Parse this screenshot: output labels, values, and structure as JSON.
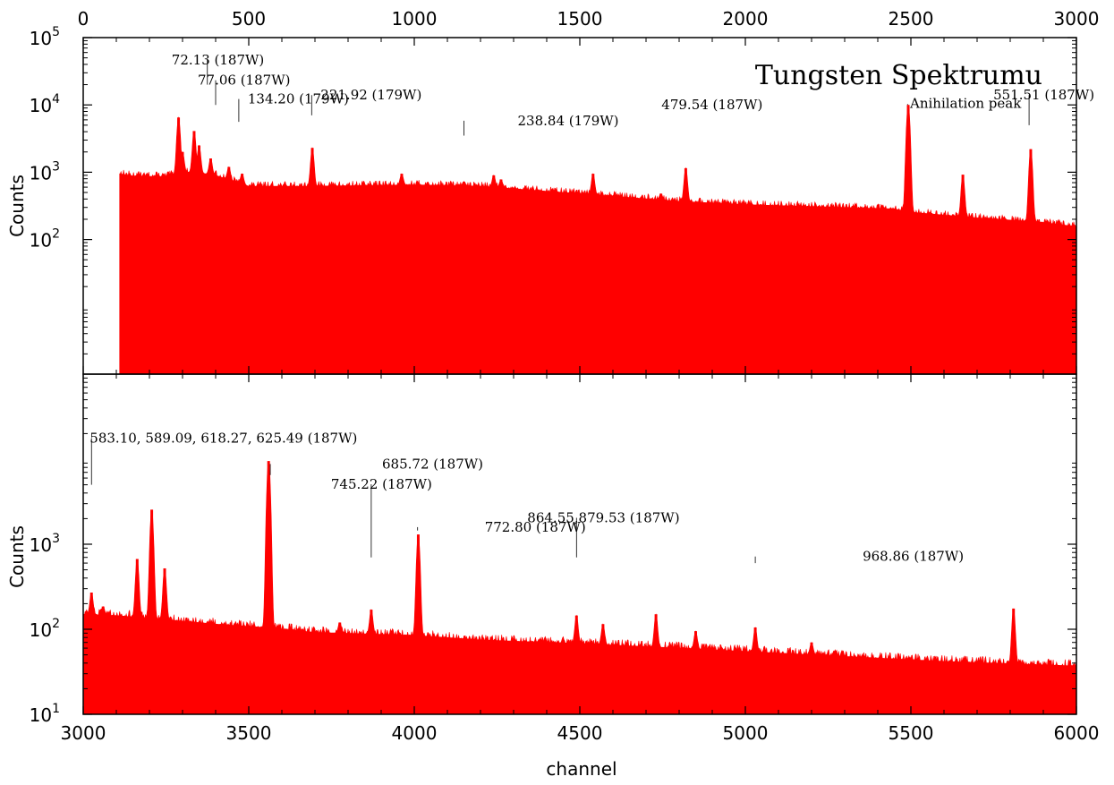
{
  "chart_data": {
    "type": "area",
    "title": "Tungsten Spektrumu",
    "xlabel": "channel",
    "panels": [
      {
        "id": "top",
        "ylabel": "Counts",
        "x_axis_position": "top",
        "xlim": [
          0,
          3000
        ],
        "ylim": [
          1,
          100000
        ],
        "yscale": "log",
        "x_ticks": [
          0,
          500,
          1000,
          1500,
          2000,
          2500,
          3000
        ],
        "y_ticks": [
          {
            "value": 100,
            "base": "10",
            "exp": "2"
          },
          {
            "value": 1000,
            "base": "10",
            "exp": "3"
          },
          {
            "value": 10000,
            "base": "10",
            "exp": "4"
          },
          {
            "value": 100000,
            "base": "10",
            "exp": "5"
          }
        ],
        "fill_color": "#ff0000",
        "spectrum": {
          "start_channel": 110,
          "baseline": [
            [
              110,
              950
            ],
            [
              150,
              880
            ],
            [
              250,
              860
            ],
            [
              300,
              1000
            ],
            [
              340,
              1000
            ],
            [
              400,
              900
            ],
            [
              500,
              620
            ],
            [
              700,
              620
            ],
            [
              1000,
              650
            ],
            [
              1200,
              620
            ],
            [
              1500,
              480
            ],
            [
              1800,
              370
            ],
            [
              2000,
              330
            ],
            [
              2300,
              300
            ],
            [
              2450,
              285
            ],
            [
              2500,
              255
            ],
            [
              2700,
              210
            ],
            [
              2900,
              180
            ],
            [
              3000,
              155
            ]
          ],
          "peaks": [
            {
              "x": 288,
              "y": 6500
            },
            {
              "x": 300,
              "y": 2000
            },
            {
              "x": 335,
              "y": 4100
            },
            {
              "x": 350,
              "y": 2500
            },
            {
              "x": 385,
              "y": 1600
            },
            {
              "x": 440,
              "y": 1200
            },
            {
              "x": 480,
              "y": 950
            },
            {
              "x": 692,
              "y": 2300
            },
            {
              "x": 962,
              "y": 950
            },
            {
              "x": 1150,
              "y": 720
            },
            {
              "x": 1240,
              "y": 900
            },
            {
              "x": 1262,
              "y": 780
            },
            {
              "x": 1540,
              "y": 950
            },
            {
              "x": 1820,
              "y": 1150
            },
            {
              "x": 1745,
              "y": 480
            },
            {
              "x": 2492,
              "y": 10000
            },
            {
              "x": 2657,
              "y": 920
            },
            {
              "x": 2862,
              "y": 2200
            }
          ]
        },
        "annotations": [
          {
            "text": "72.13 (187W)",
            "x": 375,
            "y": 20000
          },
          {
            "text": "77.06 (187W)",
            "x": 400,
            "y": 10000
          },
          {
            "text": "134.20 (179W)",
            "x": 470,
            "y": 5600
          },
          {
            "text": "221.92 (179W)",
            "x": 690,
            "y": 7000
          },
          {
            "text": "238.84 (179W)",
            "x": 1150,
            "y": 3500
          },
          {
            "text": "479.54 (187W)",
            "x": 2490,
            "y": 10300
          },
          {
            "text": "Anihilation peak",
            "x": 2492,
            "y": 9000
          },
          {
            "text": "551.51 (187W)",
            "x": 2857,
            "y": 5000
          }
        ]
      },
      {
        "id": "bottom",
        "ylabel": "Counts",
        "x_axis_position": "bottom",
        "xlim": [
          3000,
          6000
        ],
        "ylim": [
          10,
          100000
        ],
        "yscale": "log",
        "x_ticks": [
          3000,
          3500,
          4000,
          4500,
          5000,
          5500,
          6000
        ],
        "y_ticks": [
          {
            "value": 10,
            "base": "10",
            "exp": "1"
          },
          {
            "value": 100,
            "base": "10",
            "exp": "2"
          },
          {
            "value": 1000,
            "base": "10",
            "exp": "3"
          }
        ],
        "fill_color": "#ff0000",
        "spectrum": {
          "start_channel": 3000,
          "baseline": [
            [
              3000,
              150
            ],
            [
              3100,
              145
            ],
            [
              3200,
              135
            ],
            [
              3400,
              115
            ],
            [
              3550,
              105
            ],
            [
              3700,
              92
            ],
            [
              4000,
              85
            ],
            [
              4200,
              75
            ],
            [
              4500,
              68
            ],
            [
              4800,
              60
            ],
            [
              5000,
              55
            ],
            [
              5300,
              48
            ],
            [
              5600,
              42
            ],
            [
              6000,
              37
            ]
          ],
          "peaks": [
            {
              "x": 3025,
              "y": 270
            },
            {
              "x": 3060,
              "y": 185
            },
            {
              "x": 3163,
              "y": 670
            },
            {
              "x": 3207,
              "y": 2550
            },
            {
              "x": 3246,
              "y": 520
            },
            {
              "x": 3560,
              "y": 9500
            },
            {
              "x": 3775,
              "y": 120
            },
            {
              "x": 3870,
              "y": 170
            },
            {
              "x": 4012,
              "y": 1300
            },
            {
              "x": 4490,
              "y": 145
            },
            {
              "x": 4570,
              "y": 115
            },
            {
              "x": 4730,
              "y": 150
            },
            {
              "x": 4850,
              "y": 95
            },
            {
              "x": 5030,
              "y": 105
            },
            {
              "x": 5200,
              "y": 70
            },
            {
              "x": 5810,
              "y": 175
            }
          ]
        },
        "annotations": [
          {
            "text": "583.10, 589.09, 618.27, 625.49 (187W)",
            "x": 3025,
            "y": 5000
          },
          {
            "text": "685.72 (187W)",
            "x": 3565,
            "y": 6500
          },
          {
            "text": "745.22 (187W)",
            "x": 3870,
            "y": 700
          },
          {
            "text": "772.80 (187W)",
            "x": 4010,
            "y": 1450
          },
          {
            "text": "864.55,879.53 (187W)",
            "x": 4490,
            "y": 700
          },
          {
            "text": "968.86 (187W)",
            "x": 5030,
            "y": 600
          }
        ]
      }
    ]
  }
}
